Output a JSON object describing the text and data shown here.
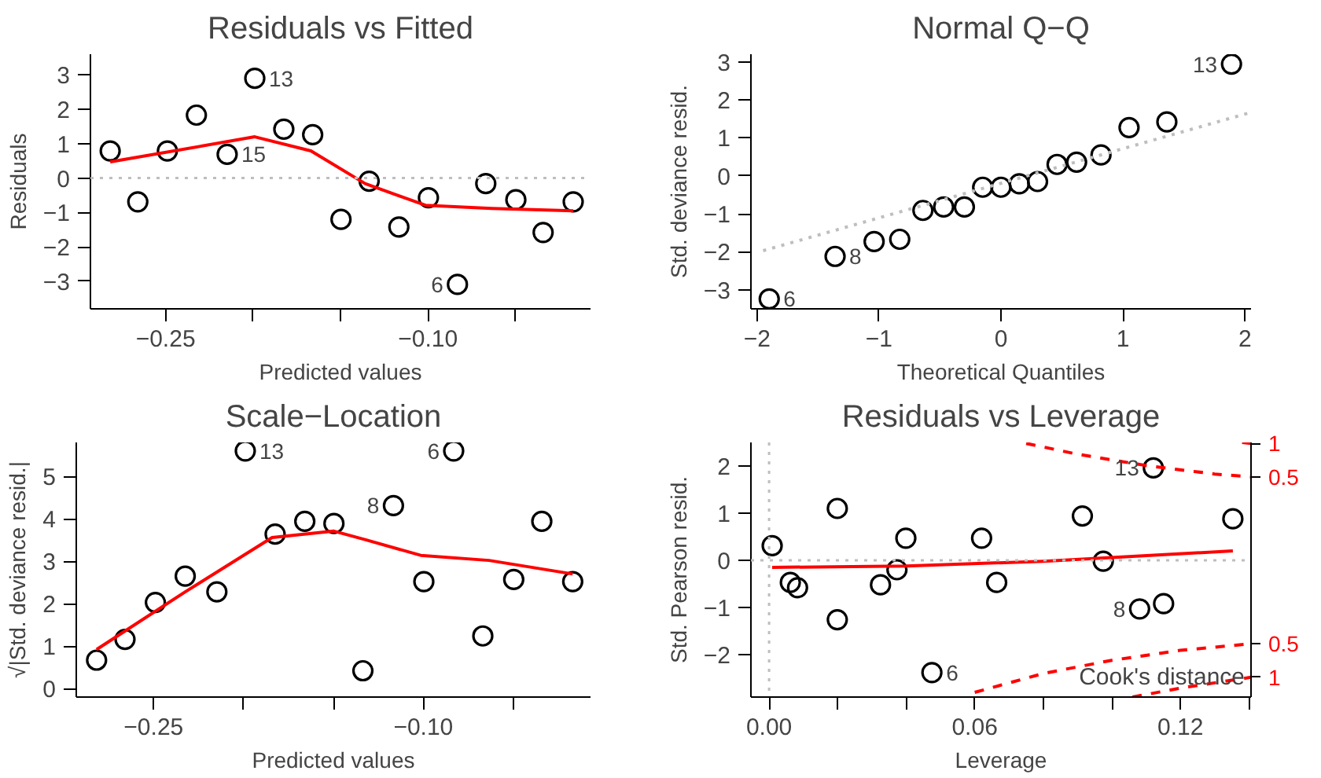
{
  "chart_data": [
    {
      "type": "scatter",
      "title": "Residuals vs Fitted",
      "xlabel": "Predicted values",
      "ylabel": "Residuals",
      "xlim": [
        -0.293,
        -0.007
      ],
      "xticks": [
        {
          "value": -0.25,
          "label": "−0.25"
        },
        {
          "value": -0.2,
          "label": null
        },
        {
          "value": -0.15,
          "label": null
        },
        {
          "value": -0.1,
          "label": "−0.10"
        },
        {
          "value": -0.05,
          "label": null
        }
      ],
      "ylim": [
        -3.8,
        3.6
      ],
      "yticks": [
        {
          "value": -3,
          "label": "−3"
        },
        {
          "value": -2,
          "label": "−2"
        },
        {
          "value": -1,
          "label": "−1"
        },
        0,
        1,
        2,
        3
      ],
      "series": [
        {
          "color": "#000000",
          "marker": "circle",
          "x": [
            -0.2817,
            -0.2659,
            -0.249,
            -0.2324,
            -0.2148,
            -0.199,
            -0.1824,
            -0.1659,
            -0.1497,
            -0.1336,
            -0.1166,
            -0.0997,
            -0.0831,
            -0.0669,
            -0.0497,
            -0.0341,
            -0.0169
          ],
          "values": [
            0.79,
            -0.69,
            0.79,
            1.83,
            0.69,
            2.9,
            1.42,
            1.26,
            -1.2,
            -0.09,
            -1.42,
            -0.57,
            -3.09,
            -0.16,
            -0.63,
            -1.58,
            -0.69
          ]
        },
        {
          "type": "line",
          "color": "#ff0000",
          "line_style": "solid",
          "x": [
            -0.2817,
            -0.199,
            -0.1669,
            -0.1359,
            -0.1014,
            -0.0634,
            -0.0169
          ],
          "values": [
            0.47,
            1.2,
            0.79,
            -0.16,
            -0.79,
            -0.88,
            -0.95
          ]
        }
      ],
      "ref_lines": [
        {
          "axis": "y",
          "value": 0,
          "color": "#bebebe",
          "line_style": "dotted"
        }
      ],
      "annotations": [
        {
          "text": "13",
          "x": -0.199,
          "y": 2.9
        },
        {
          "text": "15",
          "x": -0.2148,
          "y": 0.69
        },
        {
          "text": "6",
          "x": -0.0831,
          "y": -3.09
        }
      ]
    },
    {
      "type": "scatter",
      "title": "Normal Q−Q",
      "xlabel": "Theoretical Quantiles",
      "ylabel": "Std. deviance resid.",
      "xlim": [
        -2.05,
        2.05
      ],
      "xticks": [
        {
          "value": -2,
          "label": "−2"
        },
        {
          "value": -1,
          "label": "−1"
        },
        0,
        1,
        2
      ],
      "ylim": [
        -3.5,
        3.2
      ],
      "yticks": [
        {
          "value": -3,
          "label": "−3"
        },
        {
          "value": -2,
          "label": "−2"
        },
        {
          "value": -1,
          "label": "−1"
        },
        0,
        1,
        2,
        3
      ],
      "series": [
        {
          "color": "#000000",
          "marker": "circle",
          "x": [
            -1.9,
            -1.36,
            -1.04,
            -0.83,
            -0.64,
            -0.47,
            -0.3,
            -0.15,
            0.0,
            0.15,
            0.3,
            0.46,
            0.62,
            0.82,
            1.05,
            1.36,
            1.89
          ],
          "values": [
            -3.24,
            -2.12,
            -1.73,
            -1.67,
            -0.91,
            -0.82,
            -0.82,
            -0.3,
            -0.3,
            -0.21,
            -0.15,
            0.3,
            0.36,
            0.55,
            1.27,
            1.42,
            2.94
          ]
        },
        {
          "type": "line",
          "color": "#bebebe",
          "line_style": "dotted",
          "x": [
            -1.95,
            2.05
          ],
          "values": [
            -1.97,
            1.67
          ]
        }
      ],
      "annotations": [
        {
          "text": "13",
          "x": 1.89,
          "y": 2.94
        },
        {
          "text": "8",
          "x": -1.36,
          "y": -2.12
        },
        {
          "text": "6",
          "x": -1.9,
          "y": -3.24
        }
      ]
    },
    {
      "type": "scatter",
      "title": "Scale−Location",
      "xlabel": "Predicted values",
      "ylabel": "√|Std. deviance resid.|",
      "xlim": [
        -0.293,
        -0.007
      ],
      "xticks": [
        {
          "value": -0.25,
          "label": "−0.25"
        },
        {
          "value": -0.2,
          "label": null
        },
        {
          "value": -0.15,
          "label": null
        },
        {
          "value": -0.1,
          "label": "−0.10"
        },
        {
          "value": -0.05,
          "label": null
        }
      ],
      "ylim": [
        -0.2,
        5.8
      ],
      "yticks": [
        0,
        1,
        2,
        3,
        4,
        5
      ],
      "series": [
        {
          "color": "#000000",
          "marker": "circle",
          "x": [
            -0.2817,
            -0.2659,
            -0.249,
            -0.2324,
            -0.2148,
            -0.199,
            -0.1824,
            -0.1659,
            -0.1497,
            -0.1336,
            -0.1166,
            -0.0997,
            -0.0831,
            -0.0669,
            -0.0497,
            -0.0341,
            -0.0169
          ],
          "values": [
            0.67,
            1.16,
            2.03,
            2.65,
            2.28,
            5.6,
            3.64,
            3.94,
            3.89,
            0.42,
            4.31,
            2.52,
            5.6,
            1.24,
            2.57,
            3.94,
            2.52
          ]
        },
        {
          "type": "line",
          "color": "#ff0000",
          "line_style": "solid",
          "x": [
            -0.2817,
            -0.2324,
            -0.1841,
            -0.1497,
            -0.1324,
            -0.1014,
            -0.0634,
            -0.0169
          ],
          "values": [
            0.92,
            2.28,
            3.56,
            3.71,
            3.51,
            3.14,
            3.02,
            2.7
          ]
        }
      ],
      "annotations": [
        {
          "text": "13",
          "x": -0.199,
          "y": 5.6
        },
        {
          "text": "8",
          "x": -0.1166,
          "y": 4.31
        },
        {
          "text": "6",
          "x": -0.0831,
          "y": 5.6
        }
      ]
    },
    {
      "type": "scatter",
      "title": "Residuals vs Leverage",
      "xlabel": "Leverage",
      "ylabel": "Std. Pearson resid.",
      "xlim": [
        -0.0053,
        0.1406
      ],
      "xticks": [
        {
          "value": 0,
          "label": "0.00"
        },
        {
          "value": 0.02,
          "label": null
        },
        {
          "value": 0.04,
          "label": null
        },
        {
          "value": 0.06,
          "label": "0.06"
        },
        {
          "value": 0.08,
          "label": null
        },
        {
          "value": 0.1,
          "label": null
        },
        {
          "value": 0.12,
          "label": "0.12"
        },
        {
          "value": 0.14,
          "label": null
        }
      ],
      "ylim": [
        -2.9,
        2.5
      ],
      "yticks": [
        {
          "value": -2,
          "label": "−2"
        },
        {
          "value": -1,
          "label": "−1"
        },
        0,
        1,
        2
      ],
      "series": [
        {
          "color": "#000000",
          "marker": "circle",
          "x": [
            0.0009,
            0.0062,
            0.0083,
            0.0199,
            0.0199,
            0.0325,
            0.0373,
            0.0399,
            0.0475,
            0.062,
            0.0664,
            0.0914,
            0.0975,
            0.1081,
            0.1151,
            0.1121,
            0.1353
          ],
          "values": [
            0.31,
            -0.47,
            -0.58,
            1.1,
            -1.26,
            -0.52,
            -0.2,
            0.47,
            -2.38,
            0.47,
            -0.47,
            0.94,
            -0.02,
            -1.03,
            -0.92,
            1.96,
            0.88
          ]
        },
        {
          "type": "line",
          "color": "#ff0000",
          "line_style": "solid",
          "x": [
            0.0009,
            0.04,
            0.08,
            0.1353
          ],
          "values": [
            -0.15,
            -0.12,
            -0.02,
            0.2
          ]
        },
        {
          "type": "line",
          "name": "1",
          "color": "#ff0000",
          "line_style": "dashed",
          "x": [
            0.138,
            0.1406
          ],
          "values": [
            2.5,
            2.48
          ]
        },
        {
          "type": "line",
          "name": "0.5",
          "color": "#ff0000",
          "line_style": "dashed",
          "x": [
            0.075,
            0.09,
            0.11,
            0.13,
            0.1406
          ],
          "values": [
            2.48,
            2.25,
            2.01,
            1.83,
            1.77
          ]
        },
        {
          "type": "line",
          "name": "0.5",
          "color": "#ff0000",
          "line_style": "dashed",
          "x": [
            0.06,
            0.08,
            0.1,
            0.12,
            0.1406
          ],
          "values": [
            -2.8,
            -2.4,
            -2.12,
            -1.91,
            -1.77
          ]
        },
        {
          "type": "line",
          "name": "1",
          "color": "#ff0000",
          "line_style": "dashed",
          "x": [
            0.106,
            0.12,
            0.1406
          ],
          "values": [
            -2.9,
            -2.71,
            -2.48
          ]
        }
      ],
      "ref_lines": [
        {
          "axis": "y",
          "value": 0,
          "color": "#bebebe",
          "line_style": "dotted"
        },
        {
          "axis": "x",
          "value": 0,
          "color": "#bebebe",
          "line_style": "dotted"
        }
      ],
      "annotations": [
        "Cook's distance",
        {
          "text": "13",
          "x": 0.1121,
          "y": 1.96
        },
        {
          "text": "8",
          "x": 0.1081,
          "y": -1.03
        },
        {
          "text": "6",
          "x": 0.0475,
          "y": -2.38
        }
      ]
    }
  ]
}
